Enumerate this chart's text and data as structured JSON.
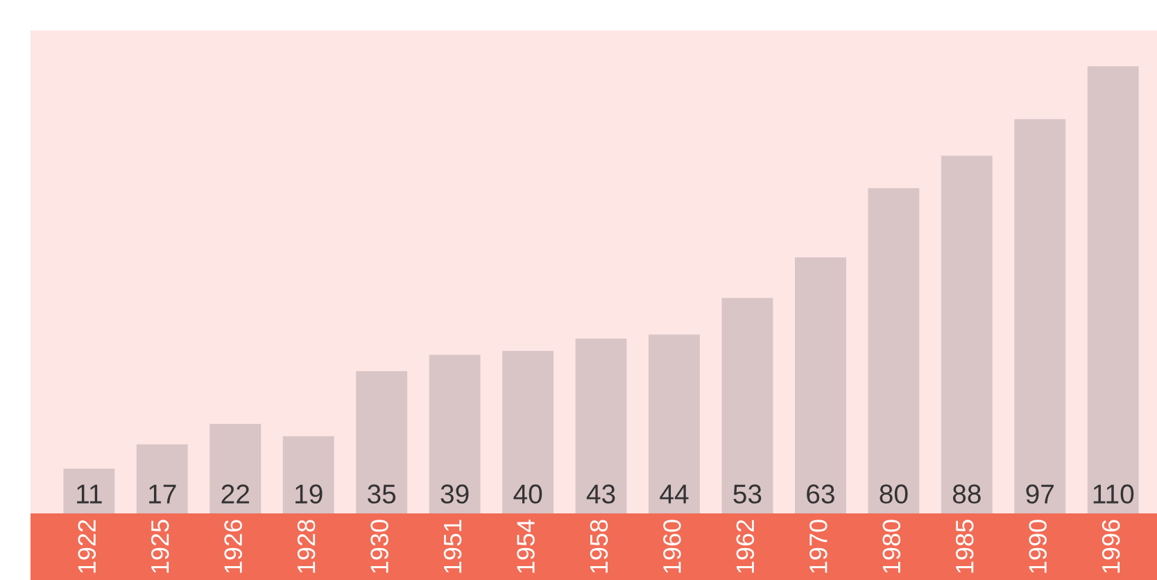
{
  "chart_data": {
    "type": "bar",
    "categories": [
      "1922",
      "1925",
      "1926",
      "1928",
      "1930",
      "1951",
      "1954",
      "1958",
      "1960",
      "1962",
      "1970",
      "1980",
      "1985",
      "1990",
      "1996"
    ],
    "values": [
      11,
      17,
      22,
      19,
      35,
      39,
      40,
      43,
      44,
      53,
      63,
      80,
      88,
      97,
      110
    ],
    "color": "#d9c4c6",
    "data_labels": true
  }
}
